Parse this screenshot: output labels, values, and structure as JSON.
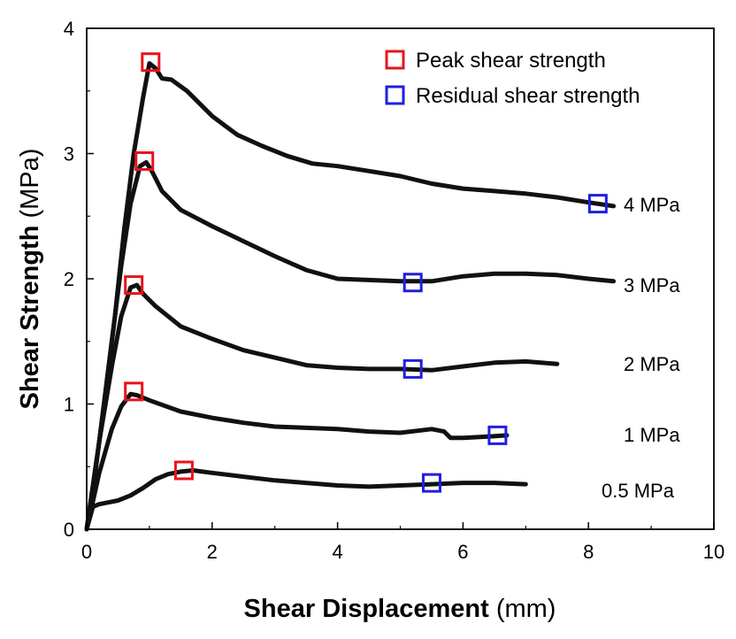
{
  "chart_data": {
    "type": "line",
    "xlabel_bold": "Shear Displacement",
    "xlabel_unit": " (mm)",
    "ylabel_bold": "Shear Strength",
    "ylabel_unit": " (MPa)",
    "xlim": [
      0,
      10
    ],
    "ylim": [
      0,
      4
    ],
    "xticks": [
      0,
      2,
      4,
      6,
      8,
      10
    ],
    "yticks": [
      0,
      1,
      2,
      3,
      4
    ],
    "grid": false,
    "legend_position": "top-right",
    "legend": [
      {
        "label": "Peak shear strength",
        "color": "#e8141b"
      },
      {
        "label": "Residual shear strength",
        "color": "#1f1fe0"
      }
    ],
    "series": [
      {
        "name": "4 MPa",
        "points": [
          [
            0,
            0
          ],
          [
            0.15,
            0.5
          ],
          [
            0.3,
            1.1
          ],
          [
            0.45,
            1.7
          ],
          [
            0.6,
            2.4
          ],
          [
            0.75,
            3.0
          ],
          [
            0.9,
            3.45
          ],
          [
            1.0,
            3.72
          ],
          [
            1.1,
            3.68
          ],
          [
            1.2,
            3.6
          ],
          [
            1.35,
            3.59
          ],
          [
            1.6,
            3.5
          ],
          [
            2.0,
            3.3
          ],
          [
            2.4,
            3.15
          ],
          [
            2.8,
            3.06
          ],
          [
            3.2,
            2.98
          ],
          [
            3.6,
            2.92
          ],
          [
            4.0,
            2.9
          ],
          [
            4.5,
            2.86
          ],
          [
            5.0,
            2.82
          ],
          [
            5.5,
            2.76
          ],
          [
            6.0,
            2.72
          ],
          [
            6.5,
            2.7
          ],
          [
            7.0,
            2.68
          ],
          [
            7.5,
            2.65
          ],
          [
            8.0,
            2.61
          ],
          [
            8.4,
            2.58
          ]
        ],
        "peak": [
          1.02,
          3.73
        ],
        "residual": [
          8.15,
          2.6
        ]
      },
      {
        "name": "3 MPa",
        "points": [
          [
            0,
            0
          ],
          [
            0.2,
            0.7
          ],
          [
            0.4,
            1.5
          ],
          [
            0.55,
            2.1
          ],
          [
            0.7,
            2.6
          ],
          [
            0.85,
            2.9
          ],
          [
            0.95,
            2.93
          ],
          [
            1.05,
            2.85
          ],
          [
            1.2,
            2.7
          ],
          [
            1.5,
            2.55
          ],
          [
            2.0,
            2.42
          ],
          [
            2.5,
            2.3
          ],
          [
            3.0,
            2.18
          ],
          [
            3.5,
            2.07
          ],
          [
            4.0,
            2.0
          ],
          [
            4.5,
            1.99
          ],
          [
            5.0,
            1.98
          ],
          [
            5.5,
            1.98
          ],
          [
            6.0,
            2.02
          ],
          [
            6.5,
            2.04
          ],
          [
            7.0,
            2.04
          ],
          [
            7.5,
            2.03
          ],
          [
            8.0,
            2.0
          ],
          [
            8.4,
            1.98
          ]
        ],
        "peak": [
          0.92,
          2.94
        ],
        "residual": [
          5.2,
          1.97
        ]
      },
      {
        "name": "2 MPa",
        "points": [
          [
            0,
            0
          ],
          [
            0.2,
            0.7
          ],
          [
            0.4,
            1.3
          ],
          [
            0.55,
            1.7
          ],
          [
            0.7,
            1.93
          ],
          [
            0.8,
            1.95
          ],
          [
            0.9,
            1.88
          ],
          [
            1.1,
            1.78
          ],
          [
            1.5,
            1.62
          ],
          [
            2.0,
            1.52
          ],
          [
            2.5,
            1.43
          ],
          [
            3.0,
            1.37
          ],
          [
            3.5,
            1.31
          ],
          [
            4.0,
            1.29
          ],
          [
            4.5,
            1.28
          ],
          [
            5.0,
            1.28
          ],
          [
            5.5,
            1.27
          ],
          [
            6.0,
            1.3
          ],
          [
            6.5,
            1.33
          ],
          [
            7.0,
            1.34
          ],
          [
            7.5,
            1.32
          ]
        ],
        "peak": [
          0.75,
          1.95
        ],
        "residual": [
          5.2,
          1.28
        ]
      },
      {
        "name": "1 MPa",
        "points": [
          [
            0,
            0
          ],
          [
            0.2,
            0.45
          ],
          [
            0.4,
            0.8
          ],
          [
            0.55,
            0.98
          ],
          [
            0.7,
            1.08
          ],
          [
            0.8,
            1.07
          ],
          [
            1.0,
            1.03
          ],
          [
            1.5,
            0.94
          ],
          [
            2.0,
            0.89
          ],
          [
            2.5,
            0.85
          ],
          [
            3.0,
            0.82
          ],
          [
            3.5,
            0.81
          ],
          [
            4.0,
            0.8
          ],
          [
            4.5,
            0.78
          ],
          [
            5.0,
            0.77
          ],
          [
            5.5,
            0.8
          ],
          [
            5.7,
            0.78
          ],
          [
            5.8,
            0.73
          ],
          [
            6.0,
            0.73
          ],
          [
            6.4,
            0.74
          ],
          [
            6.7,
            0.75
          ]
        ],
        "peak": [
          0.75,
          1.1
        ],
        "residual": [
          6.55,
          0.75
        ]
      },
      {
        "name": "0.5 MPa",
        "points": [
          [
            0,
            0
          ],
          [
            0.1,
            0.18
          ],
          [
            0.2,
            0.2
          ],
          [
            0.5,
            0.23
          ],
          [
            0.7,
            0.27
          ],
          [
            0.9,
            0.33
          ],
          [
            1.1,
            0.4
          ],
          [
            1.3,
            0.44
          ],
          [
            1.5,
            0.46
          ],
          [
            1.7,
            0.47
          ],
          [
            2.0,
            0.45
          ],
          [
            2.5,
            0.42
          ],
          [
            3.0,
            0.39
          ],
          [
            3.5,
            0.37
          ],
          [
            4.0,
            0.35
          ],
          [
            4.5,
            0.34
          ],
          [
            5.0,
            0.35
          ],
          [
            5.5,
            0.36
          ],
          [
            6.0,
            0.37
          ],
          [
            6.5,
            0.37
          ],
          [
            7.0,
            0.36
          ]
        ],
        "peak": [
          1.55,
          0.47
        ],
        "residual": [
          5.5,
          0.37
        ]
      }
    ]
  }
}
